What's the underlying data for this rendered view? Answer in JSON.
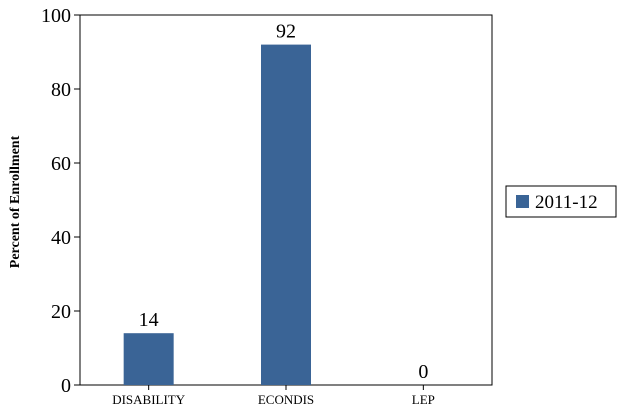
{
  "chart_data": {
    "type": "bar",
    "categories": [
      "DISABILITY",
      "ECONDIS",
      "LEP"
    ],
    "series": [
      {
        "name": "2011-12",
        "values": [
          14,
          92,
          0
        ],
        "color": "#3A6496"
      }
    ],
    "data_labels": [
      "14",
      "92",
      "0"
    ],
    "title": "",
    "xlabel": "",
    "ylabel": "Percent of Enrollment",
    "ylim": [
      0,
      100
    ],
    "y_ticks": [
      0,
      20,
      40,
      60,
      80,
      100
    ],
    "grid": false,
    "legend_position": "right"
  }
}
